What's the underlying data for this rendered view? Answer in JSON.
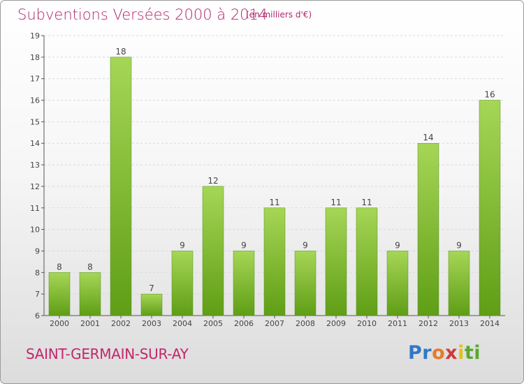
{
  "title": "Subventions Versées 2000 à 2014",
  "subtitle": "(en milliers d'€)",
  "commune": "SAINT-GERMAIN-SUR-AY",
  "logo": "Proxiti",
  "colors": {
    "title": "#b0256b",
    "bar_light": "#a6d656",
    "bar_dark": "#5f9e16",
    "grid": "#d9d9d9"
  },
  "chart_data": {
    "type": "bar",
    "categories": [
      "2000",
      "2001",
      "2002",
      "2003",
      "2004",
      "2005",
      "2006",
      "2007",
      "2008",
      "2009",
      "2010",
      "2011",
      "2012",
      "2013",
      "2014"
    ],
    "values": [
      8,
      8,
      18,
      7,
      9,
      12,
      9,
      11,
      9,
      11,
      11,
      9,
      14,
      9,
      16
    ],
    "ylim": [
      6,
      19
    ],
    "yticks": [
      6,
      7,
      8,
      9,
      10,
      11,
      12,
      13,
      14,
      15,
      16,
      17,
      18,
      19
    ],
    "grid": true,
    "title": "Subventions Versées 2000 à 2014",
    "xlabel": "",
    "ylabel": ""
  }
}
